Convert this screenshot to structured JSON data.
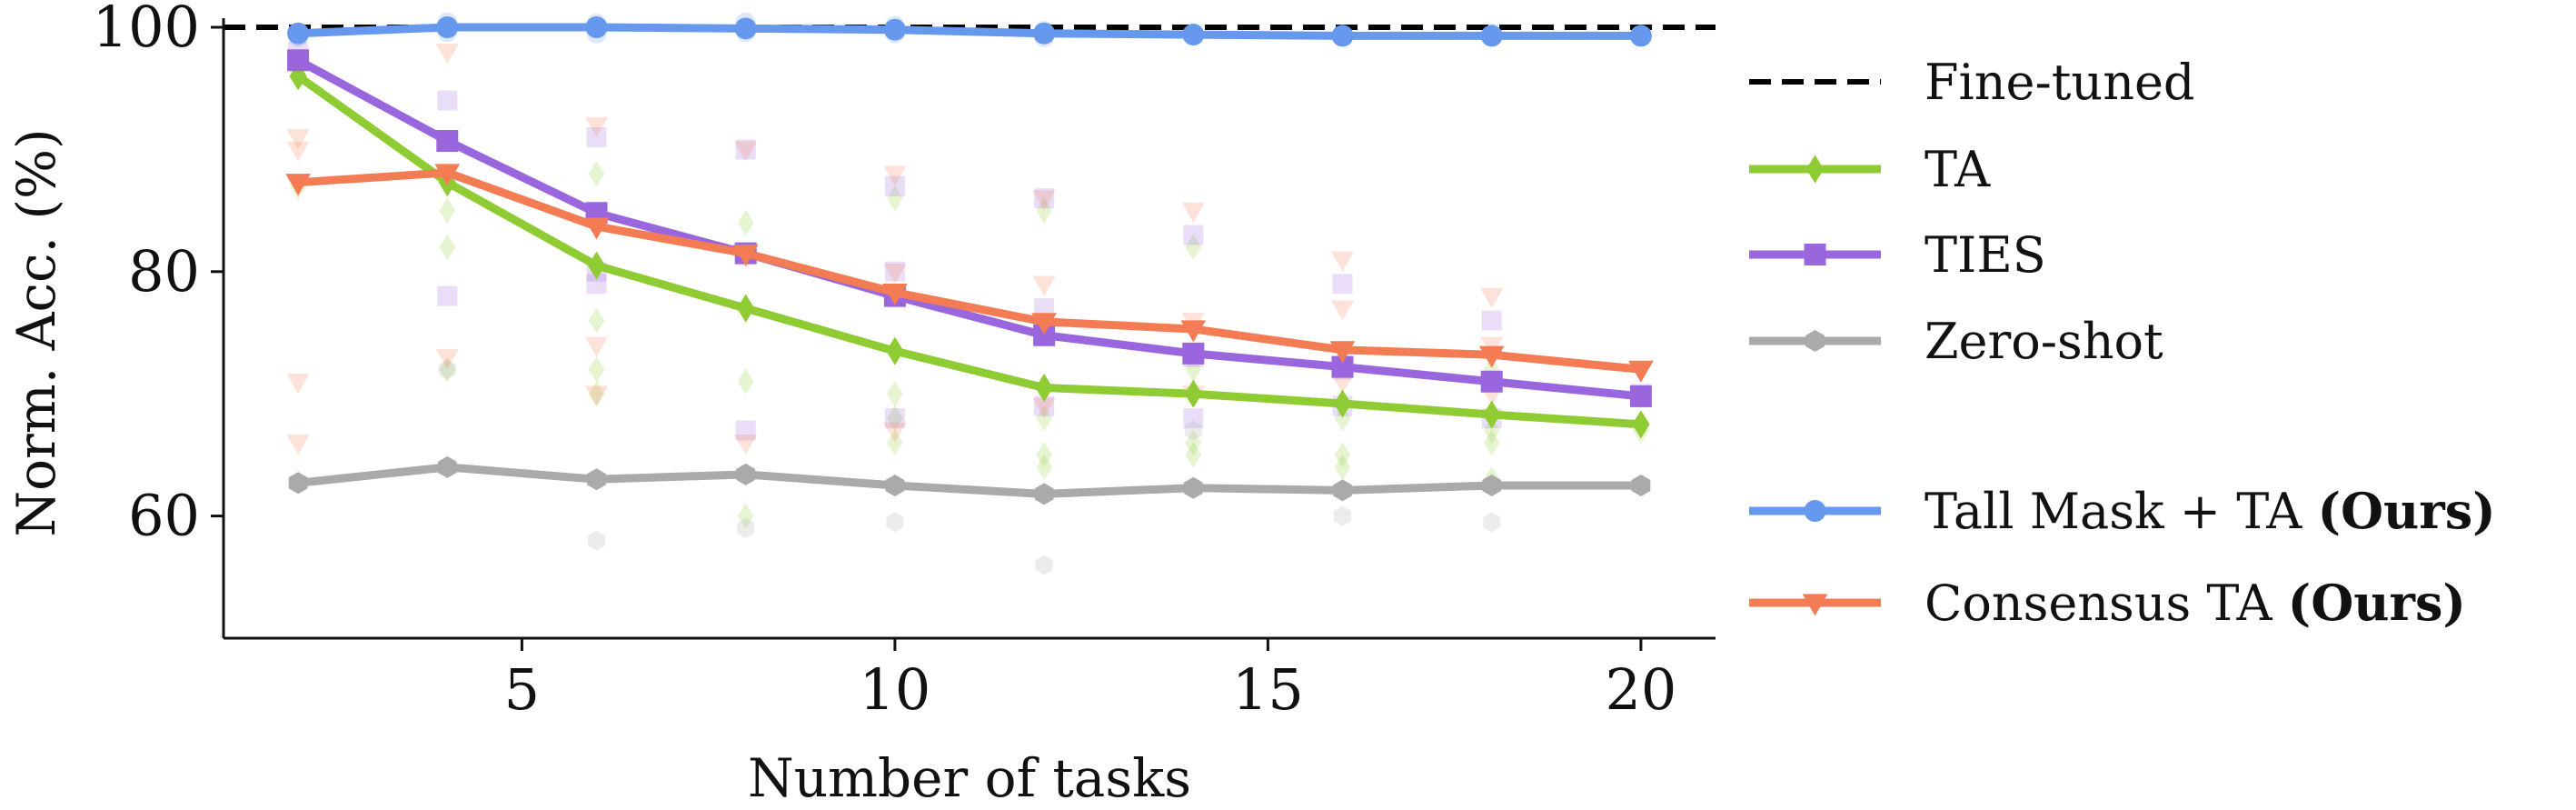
{
  "chart_data": {
    "type": "line",
    "xlabel": "Number of tasks",
    "ylabel": "Norm. Acc. (%)",
    "xlim": [
      1,
      21
    ],
    "ylim": [
      50,
      100
    ],
    "xticks": [
      5,
      10,
      15,
      20
    ],
    "yticks": [
      60,
      80,
      100
    ],
    "grid": false,
    "legend_position": "right",
    "x": [
      2,
      4,
      6,
      8,
      10,
      12,
      14,
      16,
      18,
      20
    ],
    "reference_line": {
      "name": "Fine-tuned",
      "y": 100,
      "color": "#000000",
      "style": "dashed"
    },
    "series": [
      {
        "name": "TA",
        "marker": "diamond",
        "color": "#8fcc34",
        "values": [
          96,
          87.3,
          80.5,
          77,
          73.5,
          70.5,
          70,
          69.2,
          68.3,
          67.5
        ]
      },
      {
        "name": "TIES",
        "marker": "square",
        "color": "#9966dd",
        "values": [
          97.3,
          90.7,
          84.8,
          81.5,
          78,
          74.8,
          73.3,
          72.2,
          71,
          69.8
        ]
      },
      {
        "name": "Zero-shot",
        "marker": "hexagon",
        "color": "#aaaaaa",
        "values": [
          62.7,
          64,
          63,
          63.4,
          62.5,
          61.8,
          62.3,
          62.1,
          62.5,
          62.5
        ]
      },
      {
        "name": "Tall Mask + TA",
        "name_suffix": "(Ours)",
        "marker": "circle",
        "color": "#6699ee",
        "values": [
          99.5,
          100,
          100,
          99.9,
          99.8,
          99.5,
          99.4,
          99.3,
          99.3,
          99.3
        ]
      },
      {
        "name": "Consensus TA",
        "name_suffix": "(Ours)",
        "marker": "triangle-down",
        "color": "#f47c55",
        "values": [
          87.3,
          88.1,
          83.7,
          81.5,
          78.3,
          75.9,
          75.3,
          73.6,
          73.2,
          72
        ]
      }
    ],
    "scatter_points": {
      "TA": [
        [
          2,
          87
        ],
        [
          4,
          85
        ],
        [
          4,
          82
        ],
        [
          4,
          72
        ],
        [
          6,
          88
        ],
        [
          6,
          76
        ],
        [
          6,
          72
        ],
        [
          6,
          70
        ],
        [
          8,
          84
        ],
        [
          8,
          71
        ],
        [
          8,
          60
        ],
        [
          10,
          86
        ],
        [
          10,
          70
        ],
        [
          10,
          68
        ],
        [
          10,
          66
        ],
        [
          12,
          85
        ],
        [
          12,
          68
        ],
        [
          12,
          65
        ],
        [
          12,
          64
        ],
        [
          14,
          82
        ],
        [
          14,
          72
        ],
        [
          14,
          66
        ],
        [
          14,
          65
        ],
        [
          16,
          73
        ],
        [
          16,
          68
        ],
        [
          16,
          65
        ],
        [
          16,
          64
        ],
        [
          18,
          72
        ],
        [
          18,
          67
        ],
        [
          18,
          66
        ],
        [
          18,
          63
        ],
        [
          20,
          67
        ]
      ],
      "TIES": [
        [
          2,
          98
        ],
        [
          4,
          94
        ],
        [
          4,
          78
        ],
        [
          6,
          91
        ],
        [
          6,
          80
        ],
        [
          6,
          79
        ],
        [
          8,
          90
        ],
        [
          8,
          67
        ],
        [
          10,
          87
        ],
        [
          10,
          80
        ],
        [
          10,
          68
        ],
        [
          12,
          86
        ],
        [
          12,
          77
        ],
        [
          12,
          69
        ],
        [
          14,
          83
        ],
        [
          14,
          73
        ],
        [
          14,
          68
        ],
        [
          16,
          79
        ],
        [
          16,
          72
        ],
        [
          16,
          69
        ],
        [
          18,
          76
        ],
        [
          18,
          71
        ],
        [
          18,
          68
        ],
        [
          20,
          70
        ]
      ],
      "Zero-shot": [
        [
          4,
          72
        ],
        [
          6,
          58
        ],
        [
          8,
          59
        ],
        [
          10,
          59.5
        ],
        [
          12,
          56
        ],
        [
          14,
          67
        ],
        [
          16,
          60
        ],
        [
          18,
          59.5
        ]
      ],
      "Tall Mask + TA": [
        [
          2,
          99.2
        ],
        [
          4,
          100.4
        ],
        [
          4,
          99.6
        ],
        [
          6,
          100.3
        ],
        [
          6,
          99.5
        ],
        [
          8,
          100.4
        ],
        [
          8,
          99.6
        ],
        [
          10,
          100.1
        ],
        [
          10,
          99.5
        ],
        [
          12,
          99.7
        ],
        [
          12,
          99.2
        ],
        [
          14,
          99.5
        ],
        [
          16,
          99.4
        ],
        [
          18,
          99.5
        ],
        [
          20,
          99.3
        ]
      ],
      "Consensus TA": [
        [
          2,
          91
        ],
        [
          2,
          90
        ],
        [
          2,
          71
        ],
        [
          2,
          66
        ],
        [
          4,
          98
        ],
        [
          4,
          73
        ],
        [
          6,
          92
        ],
        [
          6,
          74
        ],
        [
          6,
          70
        ],
        [
          8,
          90
        ],
        [
          8,
          66
        ],
        [
          10,
          88
        ],
        [
          10,
          80
        ],
        [
          10,
          67
        ],
        [
          12,
          86
        ],
        [
          12,
          79
        ],
        [
          12,
          69
        ],
        [
          14,
          85
        ],
        [
          14,
          76
        ],
        [
          14,
          70
        ],
        [
          16,
          81
        ],
        [
          16,
          77
        ],
        [
          16,
          71
        ],
        [
          18,
          78
        ],
        [
          18,
          74
        ],
        [
          18,
          70
        ],
        [
          20,
          72
        ]
      ]
    },
    "legend": [
      {
        "label": "Fine-tuned",
        "suffix": "",
        "ref": "reference"
      },
      {
        "label": "TA",
        "suffix": "",
        "ref": "TA"
      },
      {
        "label": "TIES",
        "suffix": "",
        "ref": "TIES"
      },
      {
        "label": "Zero-shot",
        "suffix": "",
        "ref": "Zero-shot"
      },
      {
        "label": "Tall Mask + TA ",
        "suffix": "(Ours)",
        "ref": "Tall Mask + TA"
      },
      {
        "label": "Consensus TA ",
        "suffix": "(Ours)",
        "ref": "Consensus TA"
      }
    ]
  }
}
